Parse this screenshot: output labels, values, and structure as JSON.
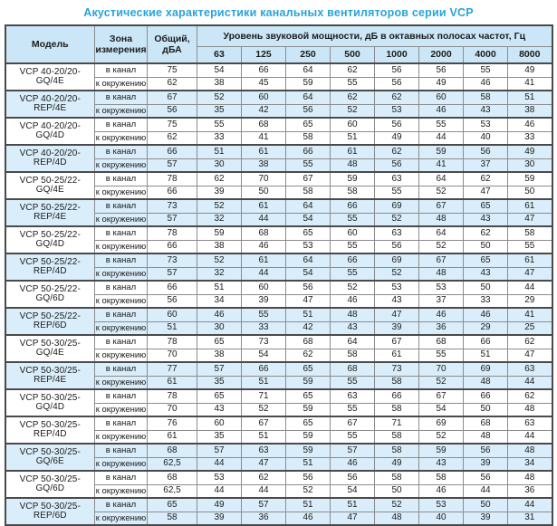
{
  "title": "Акустические характеристики канальных вентиляторов  серии VCP",
  "colors": {
    "title_accent": "#29a3d9",
    "header_bg": "#cbe7f7",
    "band_blue": "#d9eefa",
    "border_dark": "#4a4a4a",
    "border_light": "#8c8c8c"
  },
  "table": {
    "headers": {
      "model": "Модель",
      "zone": "Зона измерения",
      "total": "Общий, дБА",
      "octave": "Уровень звуковой мощности, дБ в октавных полосах частот, Гц",
      "frequencies": [
        "63",
        "125",
        "250",
        "500",
        "1000",
        "2000",
        "4000",
        "8000"
      ]
    },
    "zone_labels": {
      "duct": "в канал",
      "ambient": "к окружению"
    },
    "models": [
      {
        "name": "VCP 40-20/20-GQ/4E",
        "band": "white",
        "rows": [
          {
            "zone": "в канал",
            "total": "75",
            "levels": [
              54,
              66,
              64,
              62,
              56,
              56,
              55,
              49
            ]
          },
          {
            "zone": "к окружению",
            "total": "62",
            "levels": [
              38,
              45,
              59,
              55,
              56,
              49,
              46,
              41
            ]
          }
        ]
      },
      {
        "name": "VCP 40-20/20-REP/4E",
        "band": "blue",
        "rows": [
          {
            "zone": "в канал",
            "total": "67",
            "levels": [
              52,
              60,
              64,
              62,
              62,
              60,
              58,
              51
            ]
          },
          {
            "zone": "к окружению",
            "total": "56",
            "levels": [
              35,
              42,
              56,
              52,
              53,
              46,
              43,
              38
            ]
          }
        ]
      },
      {
        "name": "VCP 40-20/20-GQ/4D",
        "band": "white",
        "rows": [
          {
            "zone": "в канал",
            "total": "75",
            "levels": [
              55,
              68,
              65,
              60,
              56,
              55,
              53,
              46
            ]
          },
          {
            "zone": "к окружению",
            "total": "62",
            "levels": [
              33,
              41,
              58,
              51,
              49,
              44,
              40,
              33
            ]
          }
        ]
      },
      {
        "name": "VCP 40-20/20-REP/4D",
        "band": "blue",
        "rows": [
          {
            "zone": "в канал",
            "total": "66",
            "levels": [
              51,
              61,
              66,
              61,
              62,
              59,
              56,
              49
            ]
          },
          {
            "zone": "к окружению",
            "total": "57",
            "levels": [
              30,
              38,
              55,
              48,
              56,
              41,
              37,
              30
            ]
          }
        ]
      },
      {
        "name": "VCP 50-25/22-GQ/4E",
        "band": "white",
        "rows": [
          {
            "zone": "в канал",
            "total": "78",
            "levels": [
              62,
              70,
              67,
              59,
              63,
              64,
              62,
              59
            ]
          },
          {
            "zone": "к окружению",
            "total": "66",
            "levels": [
              39,
              50,
              58,
              58,
              55,
              52,
              47,
              50
            ]
          }
        ]
      },
      {
        "name": "VCP 50-25/22-REP/4E",
        "band": "blue",
        "rows": [
          {
            "zone": "в канал",
            "total": "73",
            "levels": [
              52,
              61,
              64,
              66,
              69,
              67,
              65,
              61
            ]
          },
          {
            "zone": "к окружению",
            "total": "57",
            "levels": [
              32,
              44,
              54,
              55,
              52,
              48,
              43,
              47
            ]
          }
        ]
      },
      {
        "name": "VCP 50-25/22-GQ/4D",
        "band": "white",
        "rows": [
          {
            "zone": "в канал",
            "total": "78",
            "levels": [
              59,
              68,
              65,
              60,
              63,
              64,
              62,
              58
            ]
          },
          {
            "zone": "к окружению",
            "total": "66",
            "levels": [
              38,
              46,
              53,
              55,
              56,
              52,
              50,
              55
            ]
          }
        ]
      },
      {
        "name": "VCP 50-25/22-REP/4D",
        "band": "blue",
        "rows": [
          {
            "zone": "в канал",
            "total": "73",
            "levels": [
              52,
              61,
              64,
              66,
              69,
              67,
              65,
              61
            ]
          },
          {
            "zone": "к окружению",
            "total": "57",
            "levels": [
              32,
              44,
              54,
              55,
              52,
              48,
              43,
              47
            ]
          }
        ]
      },
      {
        "name": "VCP 50-25/22-GQ/6D",
        "band": "white",
        "rows": [
          {
            "zone": "в канал",
            "total": "66",
            "levels": [
              51,
              60,
              56,
              52,
              53,
              53,
              50,
              44
            ]
          },
          {
            "zone": "к окружению",
            "total": "56",
            "levels": [
              34,
              39,
              47,
              46,
              43,
              37,
              33,
              29
            ]
          }
        ]
      },
      {
        "name": "VCP 50-25/22-REP/6D",
        "band": "blue",
        "rows": [
          {
            "zone": "в канал",
            "total": "60",
            "levels": [
              46,
              55,
              51,
              48,
              47,
              46,
              46,
              41
            ]
          },
          {
            "zone": "к окружению",
            "total": "51",
            "levels": [
              30,
              33,
              42,
              43,
              39,
              36,
              29,
              25
            ]
          }
        ]
      },
      {
        "name": "VCP 50-30/25-GQ/4E",
        "band": "white",
        "rows": [
          {
            "zone": "в канал",
            "total": "78",
            "levels": [
              65,
              73,
              68,
              64,
              67,
              68,
              66,
              62
            ]
          },
          {
            "zone": "к окружению",
            "total": "70",
            "levels": [
              38,
              54,
              62,
              58,
              61,
              55,
              51,
              47
            ]
          }
        ]
      },
      {
        "name": "VCP 50-30/25-REP/4E",
        "band": "blue",
        "rows": [
          {
            "zone": "в канал",
            "total": "77",
            "levels": [
              57,
              66,
              65,
              68,
              73,
              70,
              69,
              63
            ]
          },
          {
            "zone": "к окружению",
            "total": "61",
            "levels": [
              35,
              51,
              59,
              55,
              58,
              52,
              48,
              44
            ]
          }
        ]
      },
      {
        "name": "VCP 50-30/25-GQ/4D",
        "band": "white",
        "rows": [
          {
            "zone": "в канал",
            "total": "78",
            "levels": [
              65,
              71,
              65,
              63,
              66,
              67,
              66,
              62
            ]
          },
          {
            "zone": "к окружению",
            "total": "70",
            "levels": [
              43,
              52,
              59,
              55,
              58,
              54,
              50,
              48
            ]
          }
        ]
      },
      {
        "name": "VCP 50-30/25-REP/4D",
        "band": "white",
        "rows": [
          {
            "zone": "в канал",
            "total": "76",
            "levels": [
              60,
              67,
              65,
              67,
              71,
              69,
              68,
              63
            ]
          },
          {
            "zone": "к окружению",
            "total": "61",
            "levels": [
              35,
              51,
              59,
              55,
              58,
              52,
              48,
              44
            ]
          }
        ]
      },
      {
        "name": "VCP 50-30/25-GQ/6E",
        "band": "blue",
        "rows": [
          {
            "zone": "в канал",
            "total": "68",
            "levels": [
              57,
              63,
              59,
              57,
              58,
              59,
              56,
              48
            ]
          },
          {
            "zone": "к окружению",
            "total": "62,5",
            "levels": [
              44,
              47,
              51,
              46,
              49,
              43,
              39,
              34
            ]
          }
        ]
      },
      {
        "name": "VCP 50-30/25-GQ/6D",
        "band": "white",
        "rows": [
          {
            "zone": "в канал",
            "total": "68",
            "levels": [
              53,
              62,
              56,
              56,
              58,
              58,
              56,
              48
            ]
          },
          {
            "zone": "к окружению",
            "total": "62,5",
            "levels": [
              44,
              44,
              52,
              54,
              50,
              46,
              44,
              36
            ]
          }
        ]
      },
      {
        "name": "VCP 50-30/25-REP/6D",
        "band": "blue",
        "rows": [
          {
            "zone": "в канал",
            "total": "65",
            "levels": [
              49,
              57,
              51,
              51,
              52,
              53,
              50,
              44
            ]
          },
          {
            "zone": "к окружению",
            "total": "58",
            "levels": [
              39,
              36,
              46,
              47,
              48,
              40,
              39,
              31
            ]
          }
        ]
      }
    ]
  }
}
